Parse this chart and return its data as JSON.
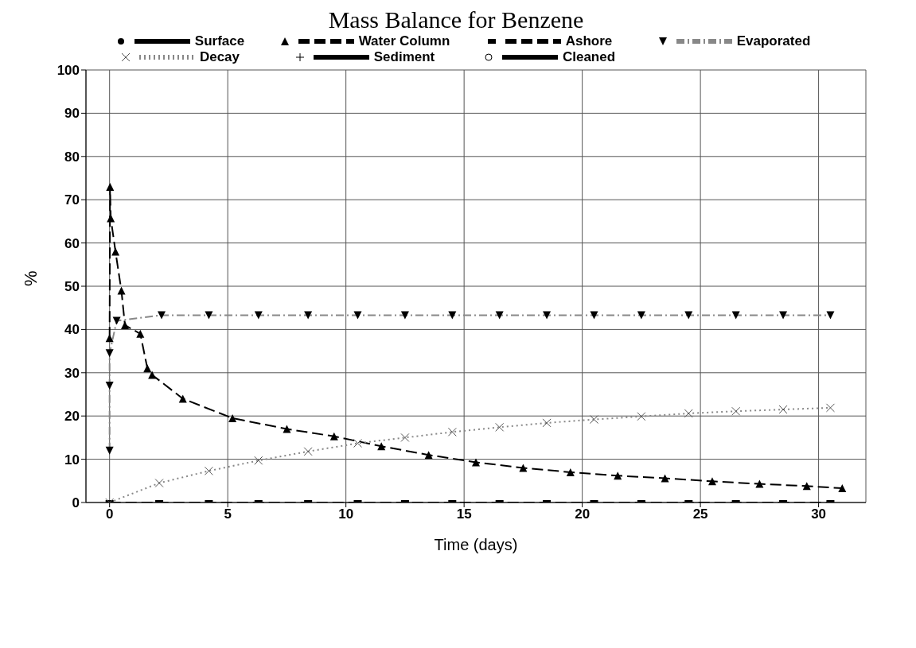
{
  "chart_data": {
    "type": "line",
    "title": "Mass Balance for Benzene",
    "xlabel": "Time (days)",
    "ylabel": "%",
    "xlim": [
      -1,
      32
    ],
    "xticks": [
      0,
      5,
      10,
      15,
      20,
      25,
      30
    ],
    "ylim": [
      0,
      100
    ],
    "yticks": [
      0,
      10,
      20,
      30,
      40,
      50,
      60,
      70,
      80,
      90,
      100
    ],
    "grid": true,
    "legend": "top",
    "series": [
      {
        "name": "Surface",
        "color": "#000000",
        "marker": "circle",
        "line_style": "solid"
      },
      {
        "name": "Water Column",
        "color": "#000000",
        "marker": "triangle",
        "line_style": "dashed",
        "x": [
          0,
          0.02,
          0.05,
          0.25,
          0.5,
          0.65,
          1.3,
          1.6,
          1.8,
          3.1,
          5.2,
          7.5,
          9.5,
          11.5,
          13.5,
          15.5,
          17.5,
          19.5,
          21.5,
          23.5,
          25.5,
          27.5,
          29.5,
          31
        ],
        "values": [
          38,
          73,
          65.7,
          58,
          49,
          41,
          39,
          31,
          29.5,
          24,
          19.5,
          17,
          15.3,
          13,
          11,
          9.3,
          8,
          7,
          6.2,
          5.6,
          4.9,
          4.3,
          3.8,
          3.3
        ]
      },
      {
        "name": "Ashore",
        "color": "#000000",
        "marker": "square",
        "line_style": "dashed",
        "x": [
          0,
          2.1,
          4.2,
          6.3,
          8.4,
          10.5,
          12.5,
          14.5,
          16.5,
          18.5,
          20.5,
          22.5,
          24.5,
          26.5,
          28.5,
          30.5
        ],
        "values": [
          0,
          0,
          0,
          0,
          0,
          0,
          0,
          0,
          0,
          0,
          0,
          0,
          0,
          0,
          0,
          0
        ]
      },
      {
        "name": "Evaporated",
        "color": "#888888",
        "marker": "triangle-down",
        "line_style": "dashdot",
        "x": [
          0,
          0,
          0,
          0.3,
          2.2,
          4.2,
          6.3,
          8.4,
          10.5,
          12.5,
          14.5,
          16.5,
          18.5,
          20.5,
          22.5,
          24.5,
          26.5,
          28.5,
          30.5
        ],
        "values": [
          12,
          27,
          34.5,
          42,
          43.3,
          43.3,
          43.3,
          43.3,
          43.3,
          43.3,
          43.3,
          43.3,
          43.3,
          43.3,
          43.3,
          43.3,
          43.3,
          43.3,
          43.3
        ]
      },
      {
        "name": "Decay",
        "color": "#888888",
        "marker": "cross",
        "line_style": "dotted",
        "x": [
          0,
          2.1,
          4.2,
          6.3,
          8.4,
          10.5,
          12.5,
          14.5,
          16.5,
          18.5,
          20.5,
          22.5,
          24.5,
          26.5,
          28.5,
          30.5
        ],
        "values": [
          0,
          4.5,
          7.3,
          9.7,
          11.8,
          13.7,
          15,
          16.3,
          17.4,
          18.4,
          19.2,
          19.9,
          20.6,
          21.1,
          21.5,
          21.9
        ]
      },
      {
        "name": "Sediment",
        "color": "#000000",
        "marker": "plus",
        "line_style": "solid"
      },
      {
        "name": "Cleaned",
        "color": "#000000",
        "marker": "open-circle",
        "line_style": "solid"
      }
    ]
  }
}
